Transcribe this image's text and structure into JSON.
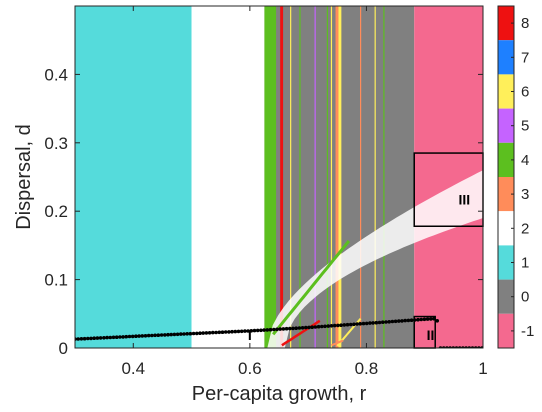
{
  "chart_data": {
    "type": "heatmap",
    "xlabel": "Per-capita growth, r",
    "ylabel": "Dispersal, d",
    "xlim": [
      0.3,
      1.0
    ],
    "ylim": [
      0,
      0.5
    ],
    "xticks": [
      {
        "value": 0.4,
        "label": "0.4"
      },
      {
        "value": 0.6,
        "label": "0.6"
      },
      {
        "value": 0.8,
        "label": "0.8"
      },
      {
        "value": 1.0,
        "label": "1"
      }
    ],
    "yticks": [
      {
        "value": 0,
        "label": "0"
      },
      {
        "value": 0.1,
        "label": "0.1"
      },
      {
        "value": 0.2,
        "label": "0.2"
      },
      {
        "value": 0.3,
        "label": "0.3"
      },
      {
        "value": 0.4,
        "label": "0.4"
      }
    ],
    "grid": false,
    "colorbar": [
      {
        "value": 8,
        "label": "8",
        "color": "#ee1111"
      },
      {
        "value": 7,
        "label": "7",
        "color": "#1e80ff"
      },
      {
        "value": 6,
        "label": "6",
        "color": "#ffef5a"
      },
      {
        "value": 5,
        "label": "5",
        "color": "#c563ff"
      },
      {
        "value": 4,
        "label": "4",
        "color": "#5cbf1f"
      },
      {
        "value": 3,
        "label": "3",
        "color": "#ff8c5a"
      },
      {
        "value": 2,
        "label": "2",
        "color": "#ffffff"
      },
      {
        "value": 1,
        "label": "1",
        "color": "#55dbdb"
      },
      {
        "value": 0,
        "label": "0",
        "color": "#808080"
      },
      {
        "value": -1,
        "label": "-1",
        "color": "#f4698f"
      }
    ],
    "bands": [
      {
        "r0": 0.3,
        "r1": 0.5,
        "value": 1
      },
      {
        "r0": 0.5,
        "r1": 0.625,
        "value": 2
      },
      {
        "r0": 0.625,
        "r1": 0.882,
        "value": 0
      },
      {
        "r0": 0.625,
        "r1": 0.645,
        "value": 4
      },
      {
        "r0": 0.652,
        "r1": 0.657,
        "value": 8
      },
      {
        "r0": 0.747,
        "r1": 0.752,
        "value": 3
      },
      {
        "r0": 0.752,
        "r1": 0.757,
        "value": 6
      },
      {
        "r0": 0.882,
        "r1": 1.0,
        "value": -1
      }
    ],
    "thin_lines": [
      {
        "r": 0.67,
        "value": 6
      },
      {
        "r": 0.686,
        "value": 4
      },
      {
        "r": 0.712,
        "value": 5
      },
      {
        "r": 0.733,
        "value": 4
      },
      {
        "r": 0.74,
        "value": 6
      },
      {
        "r": 0.79,
        "value": 3
      },
      {
        "r": 0.815,
        "value": 6
      },
      {
        "r": 0.83,
        "value": 4
      }
    ],
    "boundary_curve": {
      "name": "",
      "r": [
        0.3,
        0.4,
        0.5,
        0.6,
        0.7,
        0.8,
        0.9,
        0.92,
        0.94,
        0.96,
        0.98,
        1.0
      ],
      "d": [
        0.013,
        0.017,
        0.021,
        0.025,
        0.03,
        0.036,
        0.042,
        0.043,
        0.0,
        0.0,
        0.0,
        0.0
      ]
    },
    "annotations": [
      {
        "label": "I",
        "r": 0.6,
        "d": 0.012
      },
      {
        "label": "II",
        "r": 0.91,
        "d": 0.012
      },
      {
        "label": "III",
        "r": 0.968,
        "d": 0.21
      }
    ],
    "boxes": [
      {
        "label": "II",
        "r0": 0.882,
        "r1": 0.918,
        "d0": 0.0,
        "d1": 0.046
      },
      {
        "label": "III",
        "r0": 0.882,
        "r1": 1.0,
        "d0": 0.178,
        "d1": 0.285
      }
    ]
  }
}
